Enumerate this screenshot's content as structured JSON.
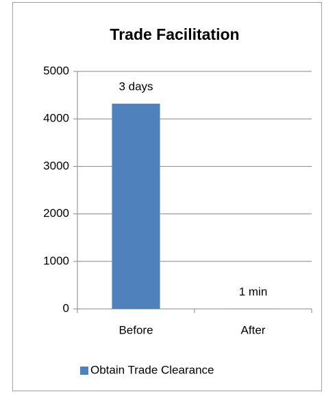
{
  "chart_data": {
    "type": "bar",
    "title": "Trade Facilitation",
    "categories": [
      "Before",
      "After"
    ],
    "series": [
      {
        "name": "Obtain Trade Clearance",
        "color": "#4f81bd",
        "values": [
          4320,
          1
        ],
        "value_labels": [
          "3 days",
          "1 min"
        ]
      }
    ],
    "ylim": [
      0,
      5000
    ],
    "yticks": [
      0,
      1000,
      2000,
      3000,
      4000,
      5000
    ],
    "grid": true,
    "legend": "bottom"
  }
}
